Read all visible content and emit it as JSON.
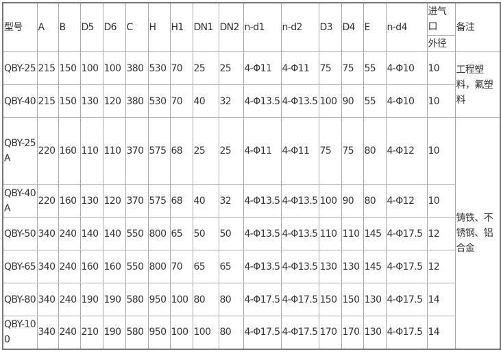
{
  "headers": [
    "型号",
    "A",
    "B",
    "D5",
    "D6",
    "C",
    "H",
    "H1",
    "DN1",
    "DN2",
    "n-d1",
    "n-d2",
    "D3",
    "D4",
    "E",
    "n-d4",
    "进气口",
    "备注"
  ],
  "sub_header": "外径",
  "rows": [
    [
      "QBY-25",
      "215",
      "150",
      "100",
      "100",
      "380",
      "530",
      "70",
      "25",
      "25",
      "4-Φ11",
      "4-Φ11",
      "75",
      "75",
      "55",
      "4-Φ10",
      "10"
    ],
    [
      "QBY-40",
      "215",
      "150",
      "130",
      "120",
      "380",
      "530",
      "70",
      "40",
      "32",
      "4-Φ13.5",
      "4-Φ13.5",
      "100",
      "90",
      "55",
      "4-Φ10",
      "10"
    ],
    [
      "QBY-25A",
      "220",
      "160",
      "110",
      "110",
      "370",
      "575",
      "68",
      "25",
      "25",
      "4-Φ11",
      "4-Φ11",
      "75",
      "75",
      "80",
      "4-Φ12",
      "10"
    ],
    [
      "QBY-40A",
      "220",
      "160",
      "130",
      "120",
      "370",
      "575",
      "68",
      "40",
      "32",
      "4-Φ13.5",
      "4-Φ13.5",
      "100",
      "90",
      "80",
      "4-Φ12",
      "10"
    ],
    [
      "QBY-50",
      "340",
      "240",
      "140",
      "140",
      "550",
      "800",
      "65",
      "50",
      "50",
      "4-Φ13.5",
      "4-Φ13.5",
      "110",
      "110",
      "145",
      "4-Φ17.5",
      "12"
    ],
    [
      "QBY-65",
      "340",
      "240",
      "160",
      "160",
      "550",
      "800",
      "70",
      "65",
      "65",
      "4-Φ13.5",
      "4-Φ13.5",
      "130",
      "130",
      "145",
      "4-Φ17.5",
      "12"
    ],
    [
      "QBY-80",
      "340",
      "240",
      "190",
      "190",
      "580",
      "950",
      "100",
      "80",
      "80",
      "4-Φ17.5",
      "4-Φ17.5",
      "150",
      "150",
      "130",
      "4-Φ17.5",
      "14"
    ],
    [
      "QBY-100",
      "340",
      "240",
      "210",
      "190",
      "580",
      "950",
      "100",
      "100",
      "80",
      "4-Φ17.5",
      "4-Φ17.5",
      "170",
      "170",
      "130",
      "4-Φ17.5",
      "14"
    ]
  ],
  "remarks": [
    "工程塑料，氟塑料",
    "铸铁、不锈钢、铝合金"
  ]
}
